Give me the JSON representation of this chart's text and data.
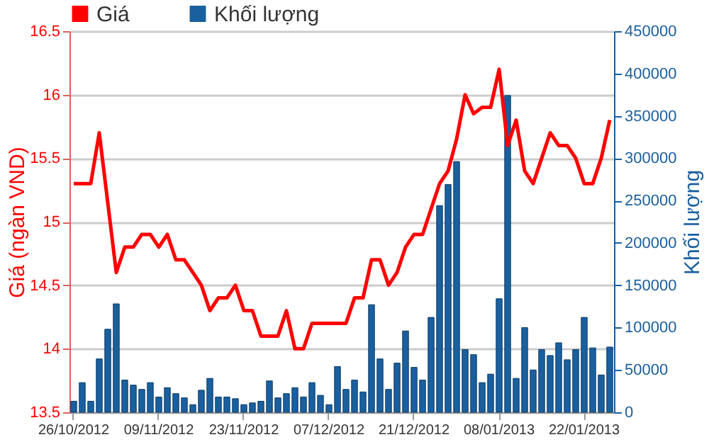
{
  "chart_data": {
    "type": "line",
    "ylabel": "Giá (ngàn VND)",
    "y2label": "Khối lượng",
    "legend": "top left",
    "grid": "y",
    "marker": "none",
    "line_style": "solid",
    "categories": [
      "26/10/2012",
      null,
      null,
      null,
      null,
      null,
      null,
      null,
      null,
      null,
      "09/11/2012",
      null,
      null,
      null,
      null,
      null,
      null,
      null,
      null,
      null,
      "23/11/2012",
      null,
      null,
      null,
      null,
      null,
      null,
      null,
      null,
      null,
      "07/12/2012",
      null,
      null,
      null,
      null,
      null,
      null,
      null,
      null,
      null,
      "21/12/2012",
      null,
      null,
      null,
      null,
      null,
      null,
      null,
      null,
      null,
      "08/01/2013",
      null,
      null,
      null,
      null,
      null,
      null,
      null,
      null,
      null,
      "22/01/2013",
      null,
      null,
      null
    ],
    "ylim": [
      13.5,
      16.5
    ],
    "yticks": [
      13.5,
      14,
      14.5,
      15,
      15.5,
      16,
      16.5
    ],
    "y2lim": [
      0,
      450000
    ],
    "y2ticks": [
      0,
      50000,
      100000,
      150000,
      200000,
      250000,
      300000,
      350000,
      400000,
      450000
    ],
    "series": [
      {
        "name": "Giá",
        "color": "#ff0000",
        "values": [
          15.3,
          15.3,
          15.3,
          15.7,
          15.15,
          14.6,
          14.8,
          14.8,
          14.9,
          14.9,
          14.8,
          14.9,
          14.7,
          14.7,
          14.6,
          14.5,
          14.3,
          14.4,
          14.4,
          14.5,
          14.3,
          14.3,
          14.1,
          14.1,
          14.1,
          14.3,
          14.0,
          14.0,
          14.2,
          14.2,
          14.2,
          14.2,
          14.2,
          14.4,
          14.4,
          14.7,
          14.7,
          14.5,
          14.6,
          14.8,
          14.9,
          14.9,
          15.1,
          15.3,
          15.4,
          15.65,
          16.0,
          15.85,
          15.9,
          15.9,
          16.2,
          15.6,
          15.8,
          15.4,
          15.3,
          15.5,
          15.7,
          15.6,
          15.6,
          15.5,
          15.3,
          15.3,
          15.5,
          15.8
        ]
      },
      {
        "name": "Khối lượng",
        "type": "bar",
        "axis": "y2",
        "color": "#1a5f9e",
        "values": [
          13000,
          35000,
          13000,
          63000,
          98000,
          128000,
          38000,
          32000,
          27000,
          35000,
          18000,
          29000,
          22000,
          17000,
          9000,
          26000,
          40000,
          18000,
          18000,
          16000,
          9000,
          11000,
          13000,
          37000,
          17000,
          22000,
          29000,
          18000,
          35000,
          20000,
          9000,
          54000,
          27000,
          38000,
          24000,
          127000,
          63000,
          27000,
          58000,
          96000,
          53000,
          38000,
          112000,
          244000,
          269000,
          296000,
          74000,
          68000,
          35000,
          45000,
          134000,
          374000,
          40000,
          100000,
          50000,
          74000,
          67000,
          82000,
          62000,
          74000,
          112000,
          76000,
          44000,
          77000
        ]
      }
    ]
  }
}
